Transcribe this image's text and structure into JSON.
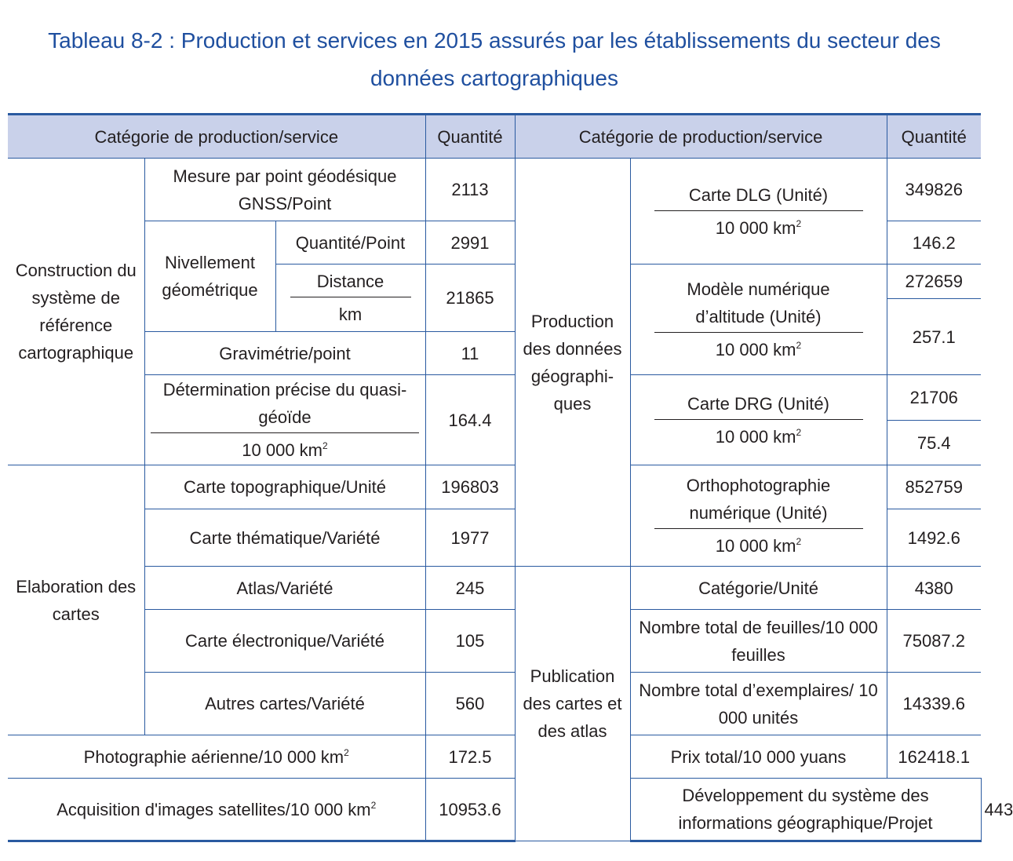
{
  "title": {
    "line1": "Tableau 8-2 : Production et services en 2015 assurés par les établissements du secteur des",
    "line2": "données cartographiques"
  },
  "header": {
    "category": "Catégorie de production/service",
    "quantity": "Quantité"
  },
  "colors": {
    "accent": "#2a5aa0",
    "header_bg": "#c9d1ea",
    "title": "#1f4f9f"
  },
  "left": {
    "group_construction": "Construction du système de référence cartographique",
    "group_elaboration": "Elaboration des cartes",
    "gnss": {
      "label": "Mesure par point géodésique GNSS/Point",
      "value": "2113"
    },
    "leveling": {
      "label": "Nivellement géométrique",
      "quantity_label": "Quantité/Point",
      "quantity_value": "2991",
      "distance_label": "Distance",
      "distance_unit": "km",
      "distance_value": "21865"
    },
    "gravimetry": {
      "label": "Gravimétrie/point",
      "value": "11"
    },
    "geoid": {
      "label": "Détermination précise du quasi-géoïde",
      "unit": "10 000 km",
      "unit_sup": "2",
      "value": "164.4"
    },
    "topo": {
      "label": "Carte topographique/Unité",
      "value": "196803"
    },
    "thematic": {
      "label": "Carte thématique/Variété",
      "value": "1977"
    },
    "atlas": {
      "label": "Atlas/Variété",
      "value": "245"
    },
    "electronic": {
      "label": "Carte électronique/Variété",
      "value": "105"
    },
    "other": {
      "label": "Autres cartes/Variété",
      "value": "560"
    },
    "aerial": {
      "label": "Photographie aérienne/10 000 km",
      "sup": "2",
      "value": "172.5"
    },
    "satellite": {
      "label": "Acquisition d'images satellites/10 000 km",
      "sup": "2",
      "value": "10953.6"
    }
  },
  "right": {
    "group_geodata": "Production des données géographi-ques",
    "group_publication": "Publication des cartes et des atlas",
    "dlg": {
      "label": "Carte DLG (Unité)",
      "unit": "10 000 km",
      "unit_sup": "2",
      "value_units": "349826",
      "value_area": "146.2"
    },
    "dem": {
      "label": "Modèle numérique d’altitude (Unité)",
      "unit": "10 000 km",
      "unit_sup": "2",
      "value_units": "272659",
      "value_area": "257.1"
    },
    "drg": {
      "label": "Carte DRG (Unité)",
      "unit": "10 000 km",
      "unit_sup": "2",
      "value_units": "21706",
      "value_area": "75.4"
    },
    "ortho": {
      "label": "Orthophotographie numérique (Unité)",
      "unit": "10 000 km",
      "unit_sup": "2",
      "value_units": "852759",
      "value_area": "1492.6"
    },
    "category_unit": {
      "label": "Catégorie/Unité",
      "value": "4380"
    },
    "sheets": {
      "label": "Nombre total de feuilles/10 000 feuilles",
      "value": "75087.2"
    },
    "copies": {
      "label": "Nombre total d’exemplaires/ 10 000 unités",
      "value": "14339.6"
    },
    "price": {
      "label": "Prix total/10 000 yuans",
      "value": "162418.1"
    },
    "gis": {
      "label": "Développement du système des informations géographique/Projet",
      "value": "443"
    }
  }
}
